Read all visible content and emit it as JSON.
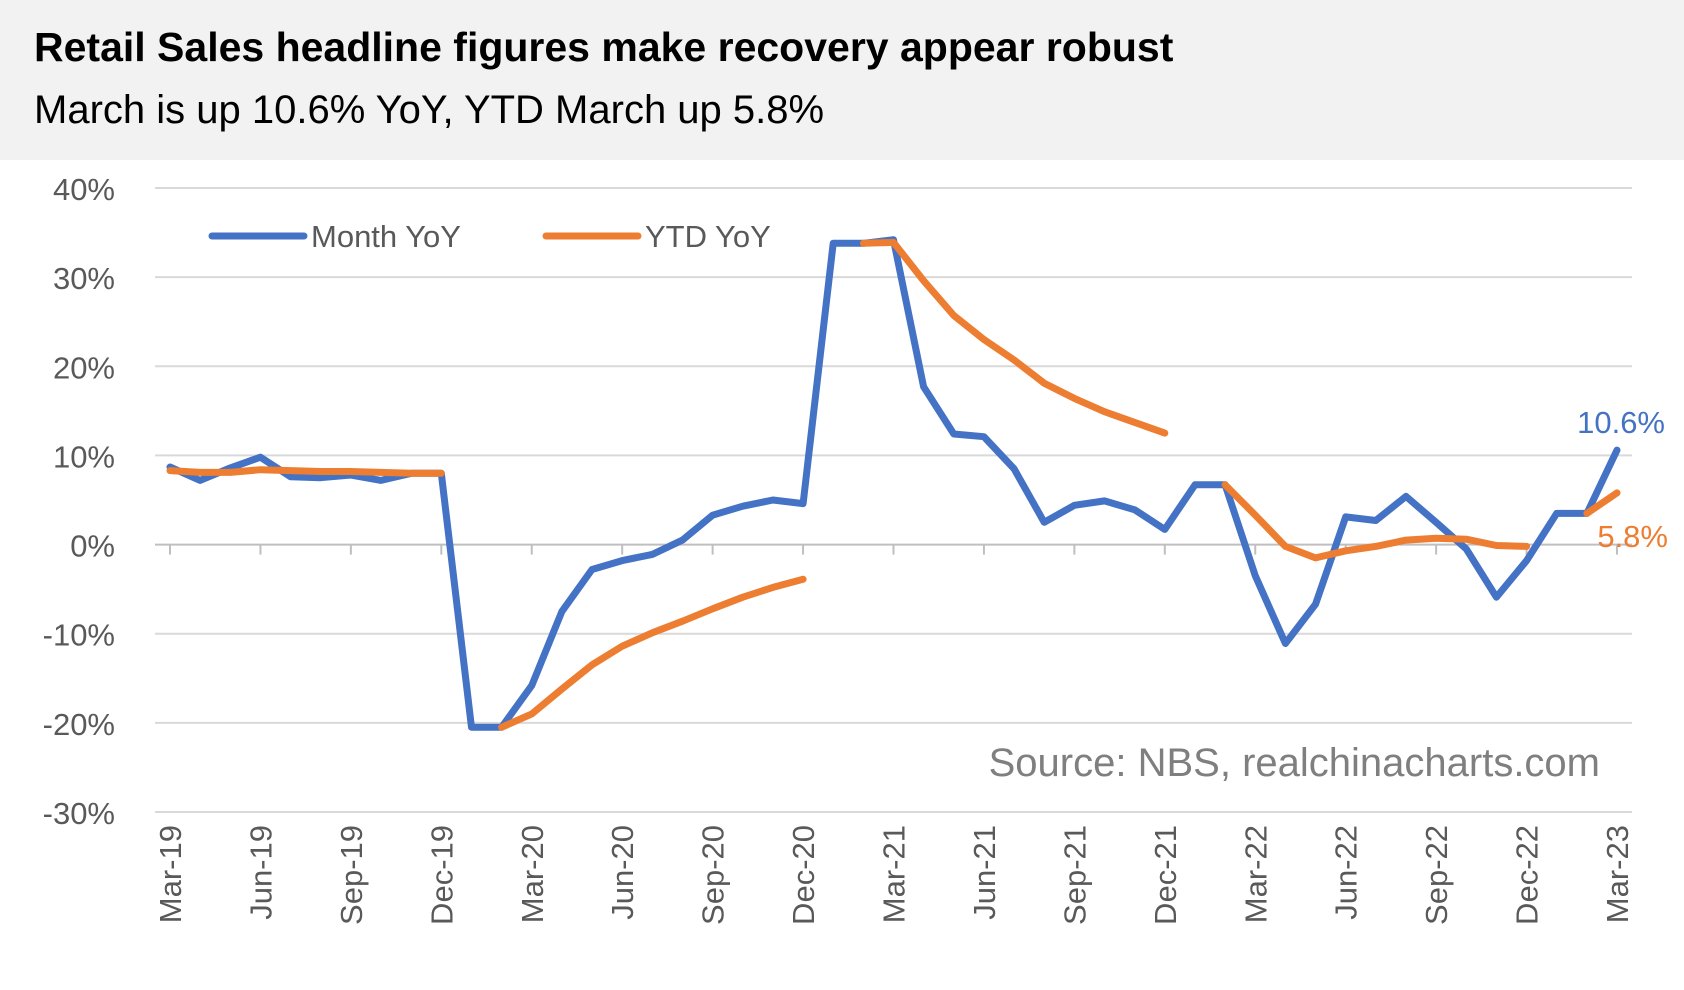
{
  "header": {
    "title": "Retail Sales headline figures make recovery appear robust",
    "subtitle": "March is up 10.6% YoY, YTD March up 5.8%"
  },
  "chart_data": {
    "type": "line",
    "title": "Retail Sales headline figures make recovery appear robust",
    "subtitle": "March is up 10.6% YoY, YTD March up 5.8%",
    "xlabel": "",
    "ylabel": "",
    "ylim": [
      -30,
      40
    ],
    "y_ticks": [
      "-30%",
      "-20%",
      "-10%",
      "0%",
      "10%",
      "20%",
      "30%",
      "40%"
    ],
    "grid": true,
    "legend_position": "top-left",
    "x": [
      "Mar-19",
      "Apr-19",
      "May-19",
      "Jun-19",
      "Jul-19",
      "Aug-19",
      "Sep-19",
      "Oct-19",
      "Nov-19",
      "Dec-19",
      "Jan-20",
      "Feb-20",
      "Mar-20",
      "Apr-20",
      "May-20",
      "Jun-20",
      "Jul-20",
      "Aug-20",
      "Sep-20",
      "Oct-20",
      "Nov-20",
      "Dec-20",
      "Jan-21",
      "Feb-21",
      "Mar-21",
      "Apr-21",
      "May-21",
      "Jun-21",
      "Jul-21",
      "Aug-21",
      "Sep-21",
      "Oct-21",
      "Nov-21",
      "Dec-21",
      "Jan-22",
      "Feb-22",
      "Mar-22",
      "Apr-22",
      "May-22",
      "Jun-22",
      "Jul-22",
      "Aug-22",
      "Sep-22",
      "Oct-22",
      "Nov-22",
      "Dec-22",
      "Jan-23",
      "Feb-23",
      "Mar-23"
    ],
    "x_tick_labels": [
      "Mar-19",
      "Jun-19",
      "Sep-19",
      "Dec-19",
      "Mar-20",
      "Jun-20",
      "Sep-20",
      "Dec-20",
      "Mar-21",
      "Jun-21",
      "Sep-21",
      "Dec-21",
      "Mar-22",
      "Jun-22",
      "Sep-22",
      "Dec-22",
      "Mar-23"
    ],
    "series": [
      {
        "name": "Month YoY",
        "color": "#4472C4",
        "values": [
          8.7,
          7.2,
          8.6,
          9.8,
          7.6,
          7.5,
          7.8,
          7.2,
          8.0,
          8.0,
          -20.5,
          -20.5,
          -15.8,
          -7.5,
          -2.8,
          -1.8,
          -1.1,
          0.5,
          3.3,
          4.3,
          5.0,
          4.6,
          33.8,
          33.8,
          34.2,
          17.7,
          12.4,
          12.1,
          8.5,
          2.5,
          4.4,
          4.9,
          3.9,
          1.7,
          6.7,
          6.7,
          -3.5,
          -11.1,
          -6.7,
          3.1,
          2.7,
          5.4,
          2.5,
          -0.5,
          -5.9,
          -1.8,
          3.5,
          3.5,
          10.6
        ],
        "end_label": "10.6%"
      },
      {
        "name": "YTD YoY",
        "color": "#ED7D31",
        "values": [
          8.3,
          8.1,
          8.1,
          8.4,
          8.3,
          8.2,
          8.2,
          8.1,
          8.0,
          8.0,
          null,
          -20.5,
          -19.0,
          -16.2,
          -13.5,
          -11.4,
          -9.9,
          -8.6,
          -7.2,
          -5.9,
          -4.8,
          -3.9,
          null,
          33.8,
          33.9,
          29.6,
          25.7,
          23.0,
          20.7,
          18.1,
          16.4,
          14.9,
          13.7,
          12.5,
          null,
          6.7,
          3.3,
          -0.2,
          -1.5,
          -0.7,
          -0.2,
          0.5,
          0.7,
          0.6,
          -0.1,
          -0.2,
          null,
          3.5,
          5.8
        ],
        "end_label": "5.8%"
      }
    ],
    "annotations": [
      "Source: NBS, realchinacharts.com"
    ]
  }
}
